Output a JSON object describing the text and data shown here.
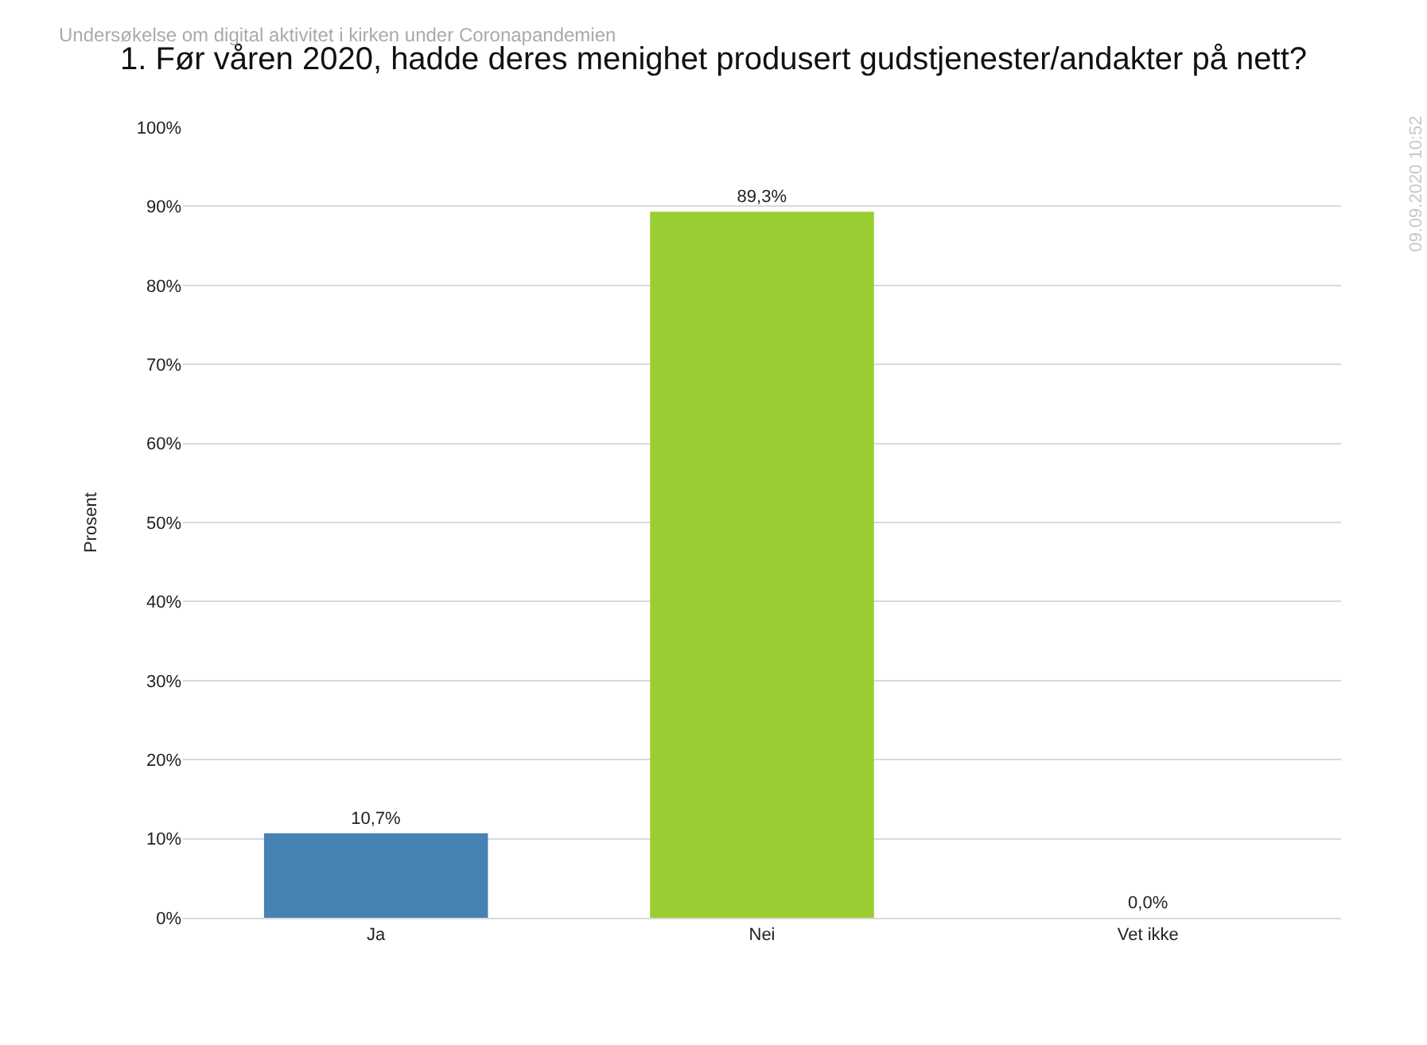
{
  "chart_data": {
    "type": "bar",
    "title": "1. Før våren 2020, hadde deres menighet produsert gudstjenester/andakter på nett?",
    "subtitle": "Undersøkelse om digital aktivitet i kirken under Coronapandemien",
    "ylabel": "Prosent",
    "categories": [
      "Ja",
      "Nei",
      "Vet ikke"
    ],
    "values": [
      10.7,
      89.3,
      0.0
    ],
    "colors": [
      "#4682b4",
      "#9acd32",
      "#9acd32"
    ],
    "value_labels": [
      "10,7%",
      "89,3%",
      "0,0%"
    ],
    "ylim": [
      0,
      100
    ],
    "yticks": [
      {
        "value": 0,
        "label": "0%"
      },
      {
        "value": 10,
        "label": "10%"
      },
      {
        "value": 20,
        "label": "20%"
      },
      {
        "value": 30,
        "label": "30%"
      },
      {
        "value": 40,
        "label": "40%"
      },
      {
        "value": 50,
        "label": "50%"
      },
      {
        "value": 60,
        "label": "60%"
      },
      {
        "value": 70,
        "label": "70%"
      },
      {
        "value": 80,
        "label": "80%"
      },
      {
        "value": 90,
        "label": "90%"
      },
      {
        "value": 100,
        "label": "100%"
      }
    ],
    "grid": "y",
    "legend": false,
    "annotations": [
      "09.09.2020 10:52"
    ]
  }
}
